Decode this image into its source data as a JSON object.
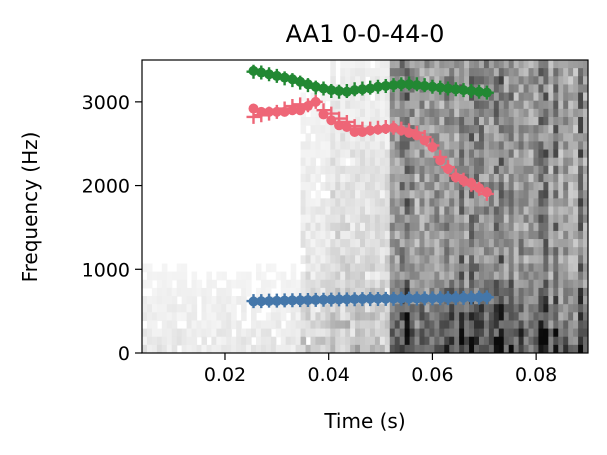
{
  "chart_data": {
    "type": "scatter",
    "title": "AA1 0-0-44-0",
    "xlabel": "Time (s)",
    "ylabel": "Frequency (Hz)",
    "xlim": [
      0.004,
      0.09
    ],
    "ylim": [
      0,
      3500
    ],
    "xticks": [
      0.02,
      0.04,
      0.06,
      0.08
    ],
    "xtick_labels": [
      "0.02",
      "0.04",
      "0.06",
      "0.08"
    ],
    "yticks": [
      0,
      1000,
      2000,
      3000
    ],
    "ytick_labels": [
      "0",
      "1000",
      "2000",
      "3000"
    ],
    "grid": false,
    "legend": "none",
    "background": "spectrogram (grayscale)",
    "series": [
      {
        "role": "formant-3",
        "color": "#228833",
        "x": [
          0.0255,
          0.027,
          0.0285,
          0.03,
          0.0315,
          0.033,
          0.0345,
          0.036,
          0.0375,
          0.039,
          0.0405,
          0.042,
          0.0435,
          0.045,
          0.0465,
          0.048,
          0.0495,
          0.051,
          0.0525,
          0.054,
          0.0555,
          0.057,
          0.0585,
          0.06,
          0.0615,
          0.063,
          0.0645,
          0.066,
          0.0675,
          0.069,
          0.0705
        ],
        "y_markers": [
          3360,
          3350,
          3330,
          3310,
          3280,
          3260,
          3230,
          3200,
          3170,
          3160,
          3130,
          3120,
          3130,
          3150,
          3160,
          3170,
          3180,
          3190,
          3200,
          3210,
          3220,
          3210,
          3200,
          3180,
          3170,
          3160,
          3150,
          3140,
          3130,
          3120,
          3110
        ],
        "y_dots": [
          3370,
          3350,
          3330,
          3310,
          3290,
          3270,
          3240,
          3210,
          3180,
          3160,
          3140,
          3130,
          3120,
          3140,
          3150,
          3160,
          3180,
          3190,
          3200,
          3210,
          3210,
          3200,
          3190,
          3180,
          3170,
          3160,
          3150,
          3140,
          3130,
          3120,
          3110
        ]
      },
      {
        "role": "formant-2",
        "color": "#EE6677",
        "x": [
          0.0255,
          0.027,
          0.0285,
          0.03,
          0.0315,
          0.033,
          0.0345,
          0.036,
          0.0375,
          0.039,
          0.0405,
          0.042,
          0.0435,
          0.045,
          0.0465,
          0.048,
          0.0495,
          0.051,
          0.0525,
          0.054,
          0.0555,
          0.057,
          0.0585,
          0.06,
          0.0615,
          0.063,
          0.0645,
          0.066,
          0.0675,
          0.069,
          0.0705
        ],
        "y_markers": [
          2820,
          2840,
          2860,
          2880,
          2920,
          2950,
          2970,
          2960,
          3000,
          2900,
          2860,
          2800,
          2760,
          2710,
          2680,
          2680,
          2690,
          2700,
          2690,
          2680,
          2660,
          2630,
          2580,
          2480,
          2340,
          2220,
          2120,
          2070,
          2010,
          1960,
          1900
        ],
        "y_dots": [
          2920,
          2880,
          2880,
          2880,
          2880,
          2900,
          2900,
          2950,
          3000,
          2850,
          2780,
          2720,
          2700,
          2640,
          2640,
          2660,
          2670,
          2680,
          2690,
          2660,
          2630,
          2600,
          2540,
          2460,
          2300,
          2200,
          2100,
          2060,
          2030,
          1970,
          1920
        ]
      },
      {
        "role": "formant-1",
        "color": "#4477AA",
        "x": [
          0.0255,
          0.027,
          0.0285,
          0.03,
          0.0315,
          0.033,
          0.0345,
          0.036,
          0.0375,
          0.039,
          0.0405,
          0.042,
          0.0435,
          0.045,
          0.0465,
          0.048,
          0.0495,
          0.051,
          0.0525,
          0.054,
          0.0555,
          0.057,
          0.0585,
          0.06,
          0.0615,
          0.063,
          0.0645,
          0.066,
          0.0675,
          0.069,
          0.0705
        ],
        "y_markers": [
          620,
          620,
          625,
          625,
          628,
          630,
          632,
          633,
          634,
          636,
          638,
          640,
          641,
          642,
          643,
          644,
          645,
          646,
          647,
          648,
          650,
          651,
          652,
          653,
          654,
          655,
          656,
          658,
          660,
          662,
          665
        ],
        "y_dots": [
          615,
          618,
          620,
          622,
          625,
          628,
          630,
          632,
          634,
          636,
          638,
          640,
          642,
          644,
          646,
          648,
          648,
          649,
          650,
          650,
          651,
          652,
          653,
          654,
          655,
          656,
          658,
          660,
          662,
          664,
          666
        ]
      }
    ]
  }
}
